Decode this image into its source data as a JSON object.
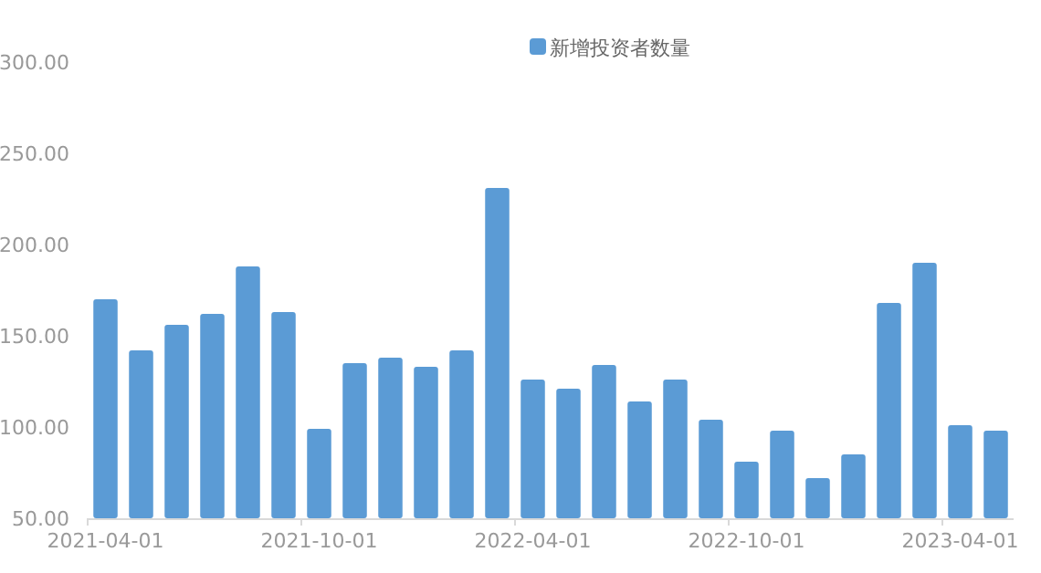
{
  "chart_data": {
    "type": "bar",
    "categories": [
      "2021-04-01",
      null,
      null,
      null,
      null,
      null,
      "2021-10-01",
      null,
      null,
      null,
      null,
      null,
      "2022-04-01",
      null,
      null,
      null,
      null,
      null,
      "2022-10-01",
      null,
      null,
      null,
      null,
      null,
      "2023-04-01",
      null
    ],
    "series": [
      {
        "name": "新增投资者数量",
        "color": "#5b9bd5",
        "values": [
          170,
          142,
          156,
          162,
          188,
          163,
          99,
          135,
          138,
          133,
          142,
          231,
          126,
          121,
          134,
          114,
          126,
          104,
          81,
          98,
          72,
          85,
          168,
          190,
          101,
          98
        ]
      }
    ],
    "ylim": [
      50,
      300
    ],
    "yticks": [
      {
        "value": 50,
        "label": "50.00"
      },
      {
        "value": 100,
        "label": "100.00"
      },
      {
        "value": 150,
        "label": "150.00"
      },
      {
        "value": 200,
        "label": "200.00"
      },
      {
        "value": 250,
        "label": "250.00"
      },
      {
        "value": 300,
        "label": "300.00"
      }
    ],
    "grid": false,
    "legend": "top"
  }
}
